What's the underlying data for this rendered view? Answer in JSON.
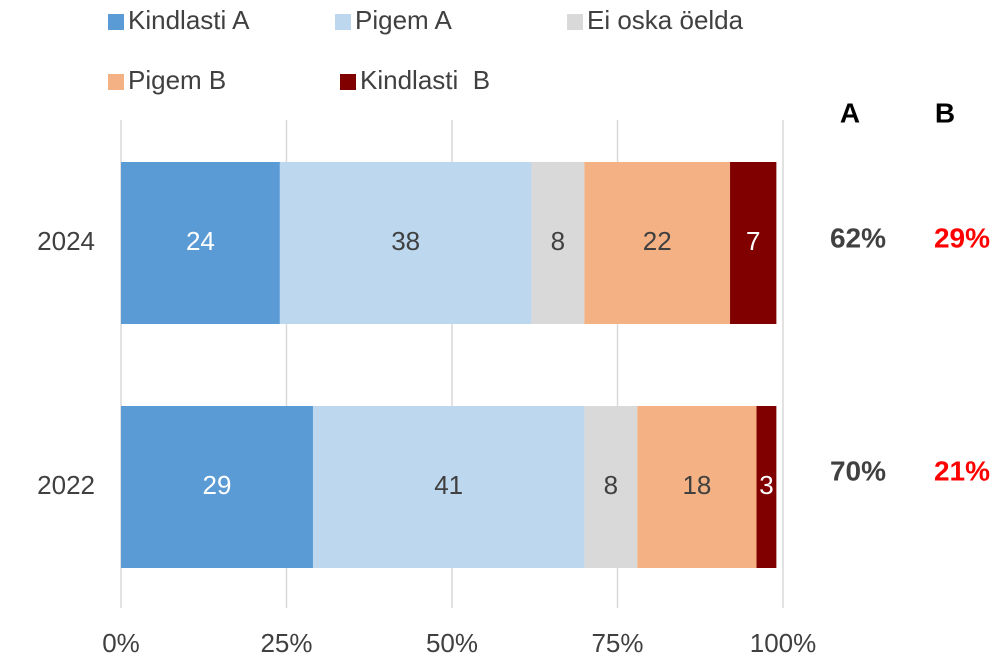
{
  "chart_data": {
    "type": "stacked_barh",
    "categories": [
      "2024",
      "2022"
    ],
    "series": [
      {
        "name": "Kindlasti A",
        "color": "#5b9bd5",
        "label_color": "#ffffff",
        "values": [
          24,
          29
        ]
      },
      {
        "name": "Pigem A",
        "color": "#bdd7ee",
        "label_color": "#404040",
        "values": [
          38,
          41
        ]
      },
      {
        "name": "Ei oska öelda",
        "color": "#d9d9d9",
        "label_color": "#404040",
        "values": [
          8,
          8
        ]
      },
      {
        "name": "Pigem B",
        "color": "#f4b183",
        "label_color": "#404040",
        "values": [
          22,
          18
        ]
      },
      {
        "name": "Kindlasti  B",
        "color": "#800000",
        "label_color": "#ffffff",
        "values": [
          7,
          3
        ]
      }
    ],
    "xlim": [
      0,
      100
    ],
    "xticks": [
      {
        "value": 0,
        "label": "0%"
      },
      {
        "value": 25,
        "label": "25%"
      },
      {
        "value": 50,
        "label": "50%"
      },
      {
        "value": 75,
        "label": "75%"
      },
      {
        "value": 100,
        "label": "100%"
      }
    ],
    "grid": true,
    "side_table": {
      "columns": [
        "A",
        "B"
      ],
      "colors": [
        "#404040",
        "#ff0000"
      ],
      "rows": [
        [
          "62%",
          "29%"
        ],
        [
          "70%",
          "21%"
        ]
      ]
    }
  }
}
